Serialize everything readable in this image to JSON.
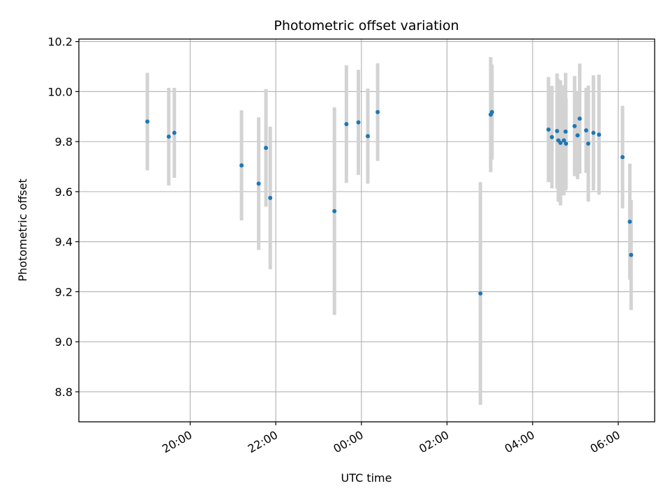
{
  "chart_data": {
    "type": "scatter",
    "title": "Photometric offset variation",
    "xlabel": "UTC time",
    "ylabel": "Photometric offset",
    "x_unit": "hours relative to 00:00 UTC",
    "xlim": [
      -6.6,
      6.85
    ],
    "ylim": [
      8.68,
      10.21
    ],
    "grid": true,
    "x_ticks": [
      {
        "value": -4,
        "label": "20:00"
      },
      {
        "value": -2,
        "label": "22:00"
      },
      {
        "value": 0,
        "label": "00:00"
      },
      {
        "value": 2,
        "label": "02:00"
      },
      {
        "value": 4,
        "label": "04:00"
      },
      {
        "value": 6,
        "label": "06:00"
      }
    ],
    "y_ticks": [
      {
        "value": 8.8,
        "label": "8.8"
      },
      {
        "value": 9.0,
        "label": "9.0"
      },
      {
        "value": 9.2,
        "label": "9.2"
      },
      {
        "value": 9.4,
        "label": "9.4"
      },
      {
        "value": 9.6,
        "label": "9.6"
      },
      {
        "value": 9.8,
        "label": "9.8"
      },
      {
        "value": 10.0,
        "label": "10.0"
      },
      {
        "value": 10.2,
        "label": "10.2"
      }
    ],
    "colors": {
      "points": "#1f77b4",
      "errorbars": "#d3d3d3",
      "grid": "#b0b0b0",
      "axes": "#000000"
    },
    "series": [
      {
        "name": "offset",
        "points": [
          {
            "x": -5.0,
            "y": 9.88,
            "err": 0.195
          },
          {
            "x": -4.5,
            "y": 9.82,
            "err": 0.195
          },
          {
            "x": -4.37,
            "y": 9.835,
            "err": 0.18
          },
          {
            "x": -2.8,
            "y": 9.705,
            "err": 0.22
          },
          {
            "x": -2.4,
            "y": 9.632,
            "err": 0.265
          },
          {
            "x": -2.23,
            "y": 9.775,
            "err": 0.235
          },
          {
            "x": -2.13,
            "y": 9.575,
            "err": 0.285
          },
          {
            "x": -0.63,
            "y": 9.522,
            "err": 0.415
          },
          {
            "x": -0.35,
            "y": 9.87,
            "err": 0.235
          },
          {
            "x": -0.07,
            "y": 9.877,
            "err": 0.21
          },
          {
            "x": 0.15,
            "y": 9.822,
            "err": 0.19
          },
          {
            "x": 0.38,
            "y": 9.918,
            "err": 0.195
          },
          {
            "x": 2.78,
            "y": 9.193,
            "err": 0.445
          },
          {
            "x": 3.02,
            "y": 9.908,
            "err": 0.23
          },
          {
            "x": 3.05,
            "y": 9.918,
            "err": 0.19
          },
          {
            "x": 4.37,
            "y": 9.848,
            "err": 0.21
          },
          {
            "x": 4.45,
            "y": 9.818,
            "err": 0.205
          },
          {
            "x": 4.57,
            "y": 9.842,
            "err": 0.23
          },
          {
            "x": 4.6,
            "y": 9.805,
            "err": 0.245
          },
          {
            "x": 4.65,
            "y": 9.795,
            "err": 0.25
          },
          {
            "x": 4.73,
            "y": 9.805,
            "err": 0.22
          },
          {
            "x": 4.77,
            "y": 9.84,
            "err": 0.235
          },
          {
            "x": 4.78,
            "y": 9.792,
            "err": 0.18
          },
          {
            "x": 4.98,
            "y": 9.862,
            "err": 0.2
          },
          {
            "x": 5.05,
            "y": 9.825,
            "err": 0.175
          },
          {
            "x": 5.1,
            "y": 9.892,
            "err": 0.22
          },
          {
            "x": 5.25,
            "y": 9.845,
            "err": 0.17
          },
          {
            "x": 5.3,
            "y": 9.792,
            "err": 0.232
          },
          {
            "x": 5.42,
            "y": 9.835,
            "err": 0.23
          },
          {
            "x": 5.55,
            "y": 9.828,
            "err": 0.24
          },
          {
            "x": 6.1,
            "y": 9.738,
            "err": 0.205
          },
          {
            "x": 6.27,
            "y": 9.48,
            "err": 0.232
          },
          {
            "x": 6.3,
            "y": 9.347,
            "err": 0.22
          }
        ]
      }
    ]
  }
}
